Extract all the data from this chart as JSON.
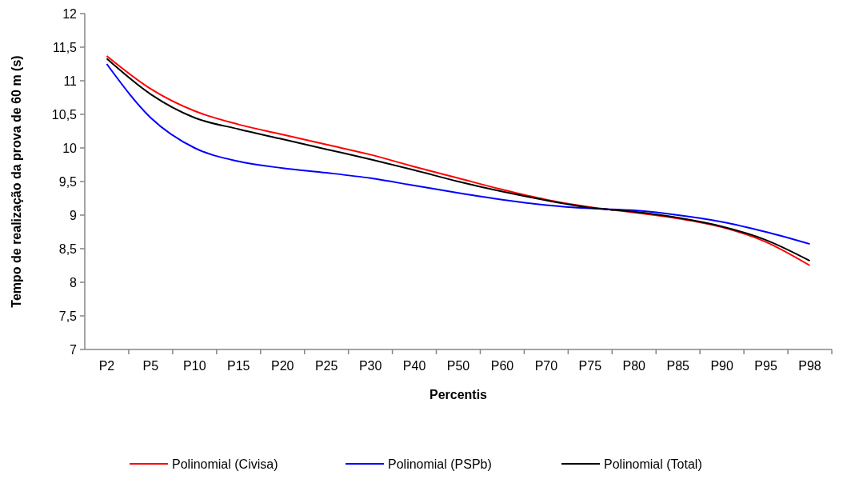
{
  "chart_data": {
    "type": "line",
    "xlabel": "Percentis",
    "ylabel": "Tempo de realização da prova de 60 m (s)",
    "categories": [
      "P2",
      "P5",
      "P10",
      "P15",
      "P20",
      "P25",
      "P30",
      "P40",
      "P50",
      "P60",
      "P70",
      "P75",
      "P80",
      "P85",
      "P90",
      "P95",
      "P98"
    ],
    "ylim": [
      7,
      12
    ],
    "yticks": [
      {
        "value": 7,
        "label": "7"
      },
      {
        "value": 7.5,
        "label": "7,5"
      },
      {
        "value": 8,
        "label": "8"
      },
      {
        "value": 8.5,
        "label": "8,5"
      },
      {
        "value": 9,
        "label": "9"
      },
      {
        "value": 9.5,
        "label": "9,5"
      },
      {
        "value": 10,
        "label": "10"
      },
      {
        "value": 10.5,
        "label": "10,5"
      },
      {
        "value": 11,
        "label": "11"
      },
      {
        "value": 11.5,
        "label": "11,5"
      },
      {
        "value": 12,
        "label": "12"
      }
    ],
    "grid": false,
    "legend": "bottom",
    "marker": "none",
    "line_style": "solid",
    "series": [
      {
        "name": "Polinomial (Civisa)",
        "color": "#ff0000",
        "values": [
          11.37,
          10.88,
          10.55,
          10.35,
          10.2,
          10.05,
          9.9,
          9.72,
          9.55,
          9.38,
          9.23,
          9.12,
          9.04,
          8.95,
          8.82,
          8.6,
          8.25
        ]
      },
      {
        "name": "Polinomial (PSPb)",
        "color": "#0000ff",
        "values": [
          11.25,
          10.45,
          10.0,
          9.8,
          9.7,
          9.63,
          9.55,
          9.44,
          9.33,
          9.23,
          9.15,
          9.1,
          9.07,
          9.0,
          8.9,
          8.75,
          8.57
        ]
      },
      {
        "name": "Polinomial (Total)",
        "color": "#000000",
        "values": [
          11.33,
          10.8,
          10.45,
          10.28,
          10.13,
          9.98,
          9.83,
          9.67,
          9.5,
          9.35,
          9.22,
          9.11,
          9.05,
          8.96,
          8.83,
          8.63,
          8.32
        ]
      }
    ]
  }
}
